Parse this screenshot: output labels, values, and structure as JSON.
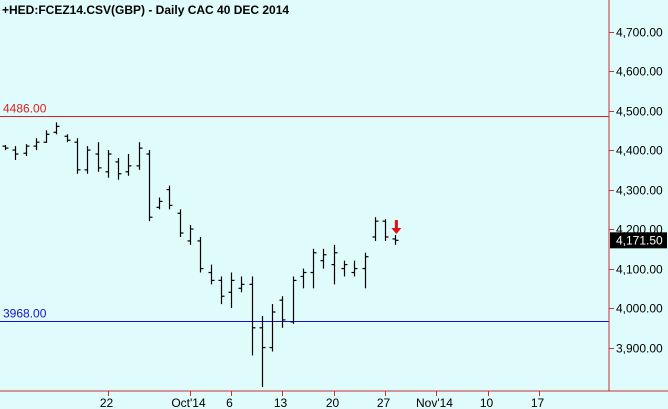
{
  "chart_data": {
    "type": "ohlc",
    "title": "+HED:FCEZ14.CSV(GBP) - Daily  CAC 40 DEC 2014",
    "ylim": [
      3790,
      4780
    ],
    "y_ticks": [
      {
        "value": 3900,
        "label": "3,900.00"
      },
      {
        "value": 4000,
        "label": "4,000.00"
      },
      {
        "value": 4100,
        "label": "4,100.00"
      },
      {
        "value": 4200,
        "label": "4,200.00"
      },
      {
        "value": 4300,
        "label": "4,300.00"
      },
      {
        "value": 4400,
        "label": "4,400.00"
      },
      {
        "value": 4500,
        "label": "4,500.00"
      },
      {
        "value": 4600,
        "label": "4,600.00"
      },
      {
        "value": 4700,
        "label": "4,700.00"
      }
    ],
    "x_ticks": [
      {
        "label": "22",
        "index": 10
      },
      {
        "label": "Oct'14",
        "index": 18
      },
      {
        "label": "6",
        "index": 22
      },
      {
        "label": "13",
        "index": 27
      },
      {
        "label": "20",
        "index": 32
      },
      {
        "label": "27",
        "index": 37
      },
      {
        "label": "Nov'14",
        "index": 42
      },
      {
        "label": "10",
        "index": 47
      },
      {
        "label": "17",
        "index": 52
      }
    ],
    "x_index_range": [
      -0.5,
      58.8
    ],
    "bars": [
      {
        "high": 4413,
        "low": 4400,
        "open": 4410,
        "close": 4405
      },
      {
        "high": 4410,
        "low": 4375,
        "open": 4400,
        "close": 4390
      },
      {
        "high": 4415,
        "low": 4385,
        "open": 4392,
        "close": 4410
      },
      {
        "high": 4430,
        "low": 4400,
        "open": 4410,
        "close": 4420
      },
      {
        "high": 4450,
        "low": 4418,
        "open": 4420,
        "close": 4440
      },
      {
        "high": 4470,
        "low": 4440,
        "open": 4445,
        "close": 4460
      },
      {
        "high": 4440,
        "low": 4420,
        "open": 4435,
        "close": 4425
      },
      {
        "high": 4430,
        "low": 4340,
        "open": 4420,
        "close": 4350
      },
      {
        "high": 4410,
        "low": 4340,
        "open": 4350,
        "close": 4400
      },
      {
        "high": 4420,
        "low": 4345,
        "open": 4390,
        "close": 4355
      },
      {
        "high": 4400,
        "low": 4330,
        "open": 4345,
        "close": 4390
      },
      {
        "high": 4380,
        "low": 4325,
        "open": 4370,
        "close": 4340
      },
      {
        "high": 4390,
        "low": 4335,
        "open": 4345,
        "close": 4360
      },
      {
        "high": 4420,
        "low": 4350,
        "open": 4360,
        "close": 4405
      },
      {
        "high": 4400,
        "low": 4220,
        "open": 4390,
        "close": 4230
      },
      {
        "high": 4280,
        "low": 4250,
        "open": 4255,
        "close": 4270
      },
      {
        "high": 4310,
        "low": 4250,
        "open": 4300,
        "close": 4260
      },
      {
        "high": 4250,
        "low": 4180,
        "open": 4240,
        "close": 4190
      },
      {
        "high": 4210,
        "low": 4160,
        "open": 4170,
        "close": 4200
      },
      {
        "high": 4180,
        "low": 4090,
        "open": 4170,
        "close": 4100
      },
      {
        "high": 4110,
        "low": 4060,
        "open": 4090,
        "close": 4070
      },
      {
        "high": 4080,
        "low": 4010,
        "open": 4070,
        "close": 4030
      },
      {
        "high": 4090,
        "low": 4000,
        "open": 4040,
        "close": 4070
      },
      {
        "high": 4080,
        "low": 4040,
        "open": 4050,
        "close": 4060
      },
      {
        "high": 4080,
        "low": 3880,
        "open": 4060,
        "close": 3950
      },
      {
        "high": 3980,
        "low": 3800,
        "open": 3950,
        "close": 3900
      },
      {
        "high": 4010,
        "low": 3890,
        "open": 3900,
        "close": 3990
      },
      {
        "high": 4030,
        "low": 3950,
        "open": 4020,
        "close": 3970
      },
      {
        "high": 4080,
        "low": 3960,
        "open": 3965,
        "close": 4070
      },
      {
        "high": 4100,
        "low": 4050,
        "open": 4080,
        "close": 4090
      },
      {
        "high": 4150,
        "low": 4050,
        "open": 4090,
        "close": 4140
      },
      {
        "high": 4150,
        "low": 4100,
        "open": 4120,
        "close": 4135
      },
      {
        "high": 4160,
        "low": 4060,
        "open": 4110,
        "close": 4140
      },
      {
        "high": 4120,
        "low": 4080,
        "open": 4100,
        "close": 4110
      },
      {
        "high": 4120,
        "low": 4080,
        "open": 4090,
        "close": 4100
      },
      {
        "high": 4140,
        "low": 4050,
        "open": 4100,
        "close": 4130
      },
      {
        "high": 4230,
        "low": 4170,
        "open": 4180,
        "close": 4220
      },
      {
        "high": 4225,
        "low": 4170,
        "open": 4220,
        "close": 4180
      },
      {
        "high": 4185,
        "low": 4160,
        "open": 4175,
        "close": 4171.5
      }
    ],
    "hlines": [
      {
        "value": 4486,
        "label": "4486.00",
        "color": "#e02020"
      },
      {
        "value": 3968,
        "label": "3968.00",
        "color": "#1414c8"
      }
    ],
    "last_price": {
      "value": 4171.5,
      "label": "4,171.50"
    },
    "signal_arrow": {
      "bar_index": 38,
      "direction": "down",
      "color": "#e01010"
    },
    "colors": {
      "background": "#e0fbfb",
      "bars": "#000000",
      "axis": "#c83232"
    }
  }
}
